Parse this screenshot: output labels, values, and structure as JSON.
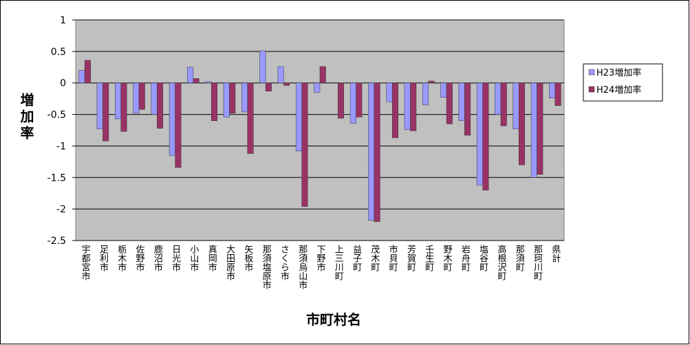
{
  "chart_data": {
    "type": "bar",
    "x_label": "市町村名",
    "y_label": "増加率",
    "categories": [
      "宇都宮市",
      "足利市",
      "栃木市",
      "佐野市",
      "鹿沼市",
      "日光市",
      "小山市",
      "真岡市",
      "大田原市",
      "矢板市",
      "那須塩原市",
      "さくら市",
      "那須烏山市",
      "下野市",
      "上三川町",
      "益子町",
      "茂木町",
      "市貝町",
      "芳賀町",
      "壬生町",
      "野木町",
      "岩舟町",
      "塩谷町",
      "高根沢町",
      "那須町",
      "那珂川町",
      "県計"
    ],
    "series": [
      {
        "name": "H23増加率",
        "color": "#9999ff",
        "values": [
          0.2,
          -0.73,
          -0.57,
          -0.48,
          -0.5,
          -1.15,
          0.25,
          0.02,
          -0.54,
          -0.46,
          0.51,
          0.26,
          -1.08,
          -0.15,
          0,
          -0.64,
          -2.18,
          -0.3,
          -0.74,
          -0.35,
          -0.23,
          -0.6,
          -1.62,
          -0.5,
          -0.73,
          -1.5,
          -0.24
        ]
      },
      {
        "name": "H24増加率",
        "color": "#993366",
        "values": [
          0.36,
          -0.92,
          -0.77,
          -0.42,
          -0.72,
          -1.34,
          0.07,
          -0.6,
          -0.48,
          -1.12,
          -0.13,
          -0.04,
          -1.96,
          0.26,
          -0.56,
          -0.54,
          -2.2,
          -0.87,
          -0.76,
          0.03,
          -0.65,
          -0.83,
          -1.7,
          -0.68,
          -1.3,
          -1.45,
          -0.36
        ]
      }
    ],
    "ylim": [
      -2.5,
      1
    ],
    "yticks": [
      -2.5,
      -2,
      -1.5,
      -1,
      -0.5,
      0,
      0.5,
      1
    ],
    "grid": true,
    "legend": "right"
  }
}
